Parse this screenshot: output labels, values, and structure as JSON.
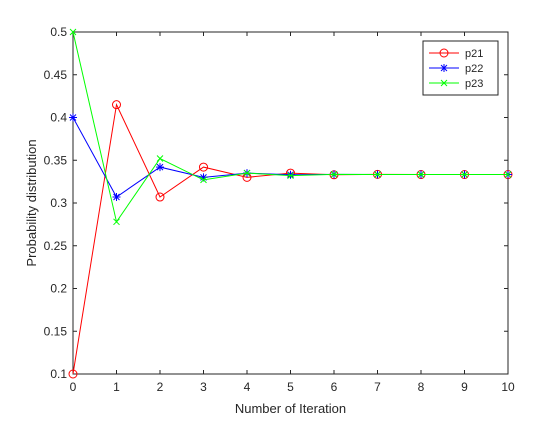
{
  "chart_data": {
    "type": "line",
    "xlabel": "Number of Iteration",
    "ylabel": "Probability distribution",
    "xlim": [
      0,
      10
    ],
    "ylim": [
      0.1,
      0.5
    ],
    "xticks": [
      0,
      1,
      2,
      3,
      4,
      5,
      6,
      7,
      8,
      9,
      10
    ],
    "yticks": [
      0.1,
      0.15,
      0.2,
      0.25,
      0.3,
      0.35,
      0.4,
      0.45,
      0.5
    ],
    "ytick_labels": [
      "0.1",
      "0.15",
      "0.2",
      "0.25",
      "0.3",
      "0.35",
      "0.4",
      "0.45",
      "0.5"
    ],
    "grid": false,
    "legend_position": "top-right",
    "x": [
      0,
      1,
      2,
      3,
      4,
      5,
      6,
      7,
      8,
      9,
      10
    ],
    "series": [
      {
        "name": "p21",
        "color": "#ff0000",
        "marker": "circle",
        "values": [
          0.1,
          0.415,
          0.307,
          0.342,
          0.33,
          0.335,
          0.333,
          0.3335,
          0.3333,
          0.3333,
          0.3333
        ]
      },
      {
        "name": "p22",
        "color": "#0000ff",
        "marker": "star",
        "values": [
          0.4,
          0.307,
          0.342,
          0.33,
          0.335,
          0.333,
          0.3335,
          0.3333,
          0.3333,
          0.3333,
          0.3333
        ]
      },
      {
        "name": "p23",
        "color": "#00ff00",
        "marker": "x",
        "values": [
          0.5,
          0.278,
          0.352,
          0.327,
          0.335,
          0.332,
          0.3335,
          0.3333,
          0.3333,
          0.3333,
          0.3333
        ]
      }
    ]
  }
}
